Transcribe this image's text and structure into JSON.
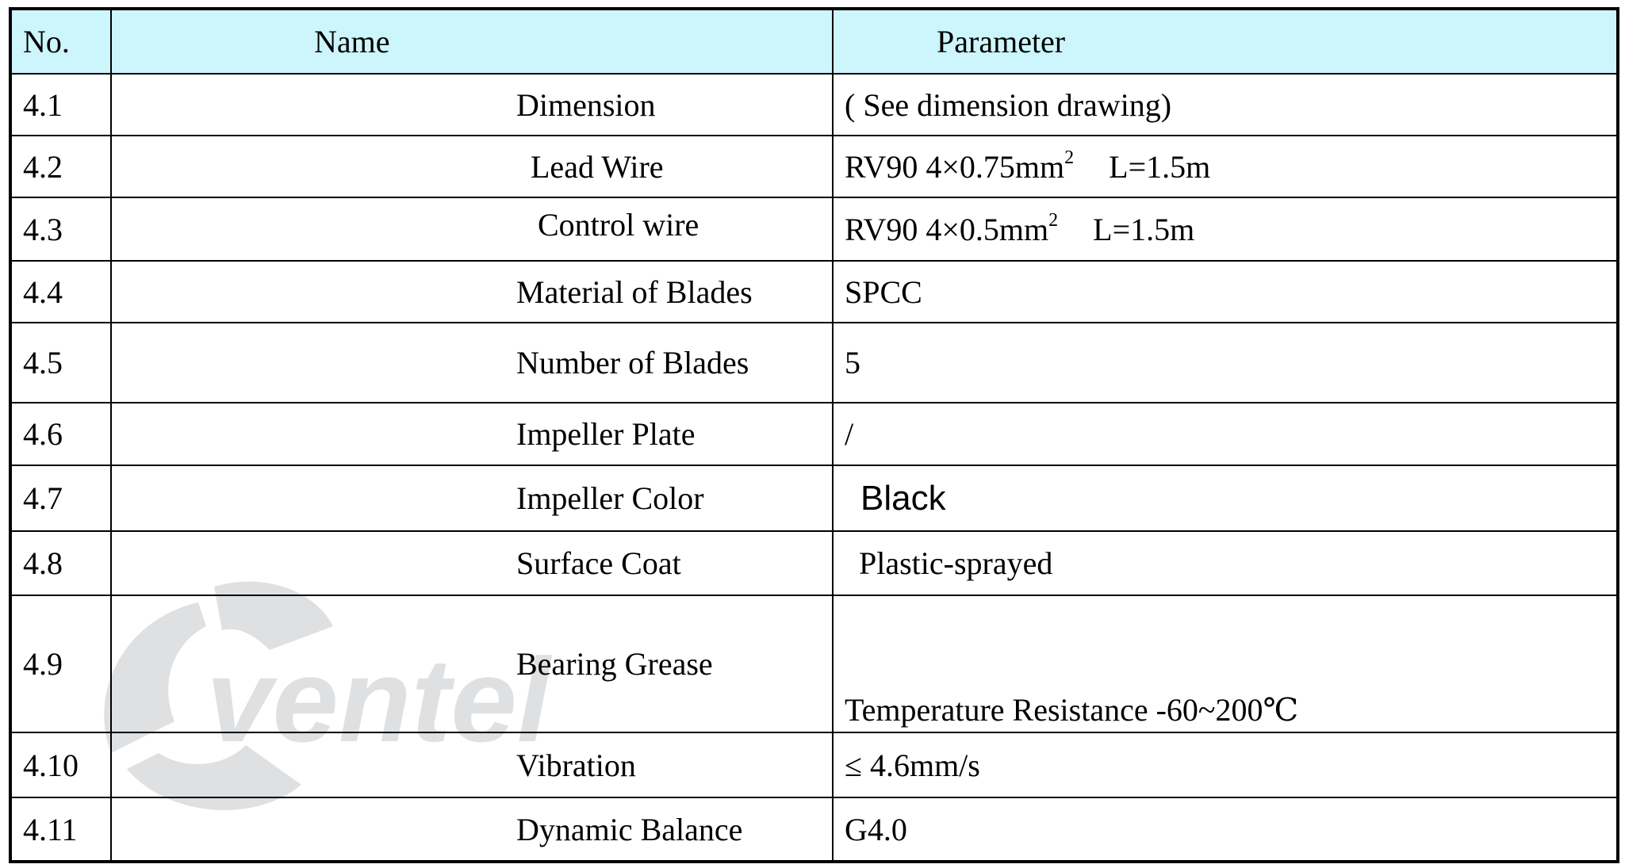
{
  "headers": {
    "no": "No.",
    "name": "Name",
    "parameter": "Parameter"
  },
  "rows": [
    {
      "no": "4.1",
      "name": "Dimension",
      "param": "( See dimension drawing)"
    },
    {
      "no": "4.2",
      "name": "Lead Wire",
      "param_a": "RV90 4×0.75mm",
      "param_sup": "2",
      "param_b": "L=1.5m"
    },
    {
      "no": "4.3",
      "name": "Control wire",
      "param_a": "RV90 4×0.5mm",
      "param_sup": "2",
      "param_b": "L=1.5m"
    },
    {
      "no": "4.4",
      "name": "Material of Blades",
      "param": "SPCC"
    },
    {
      "no": "4.5",
      "name": "Number of Blades",
      "param": "5"
    },
    {
      "no": "4.6",
      "name": "Impeller Plate",
      "param": "/"
    },
    {
      "no": "4.7",
      "name": "Impeller Color",
      "param": "Black"
    },
    {
      "no": "4.8",
      "name": "Surface Coat",
      "param": "Plastic-sprayed"
    },
    {
      "no": "4.9",
      "name": "Bearing Grease",
      "param": "Temperature Resistance -60~200℃"
    },
    {
      "no": "4.10",
      "name": "Vibration",
      "param": "≤ 4.6mm/s"
    },
    {
      "no": "4.11",
      "name": "Dynamic Balance",
      "param": "G4.0"
    }
  ],
  "watermark": {
    "text": "ventel",
    "icon": "fan-icon"
  },
  "colors": {
    "header_bg": "#ccf6fc",
    "border": "#000000"
  }
}
